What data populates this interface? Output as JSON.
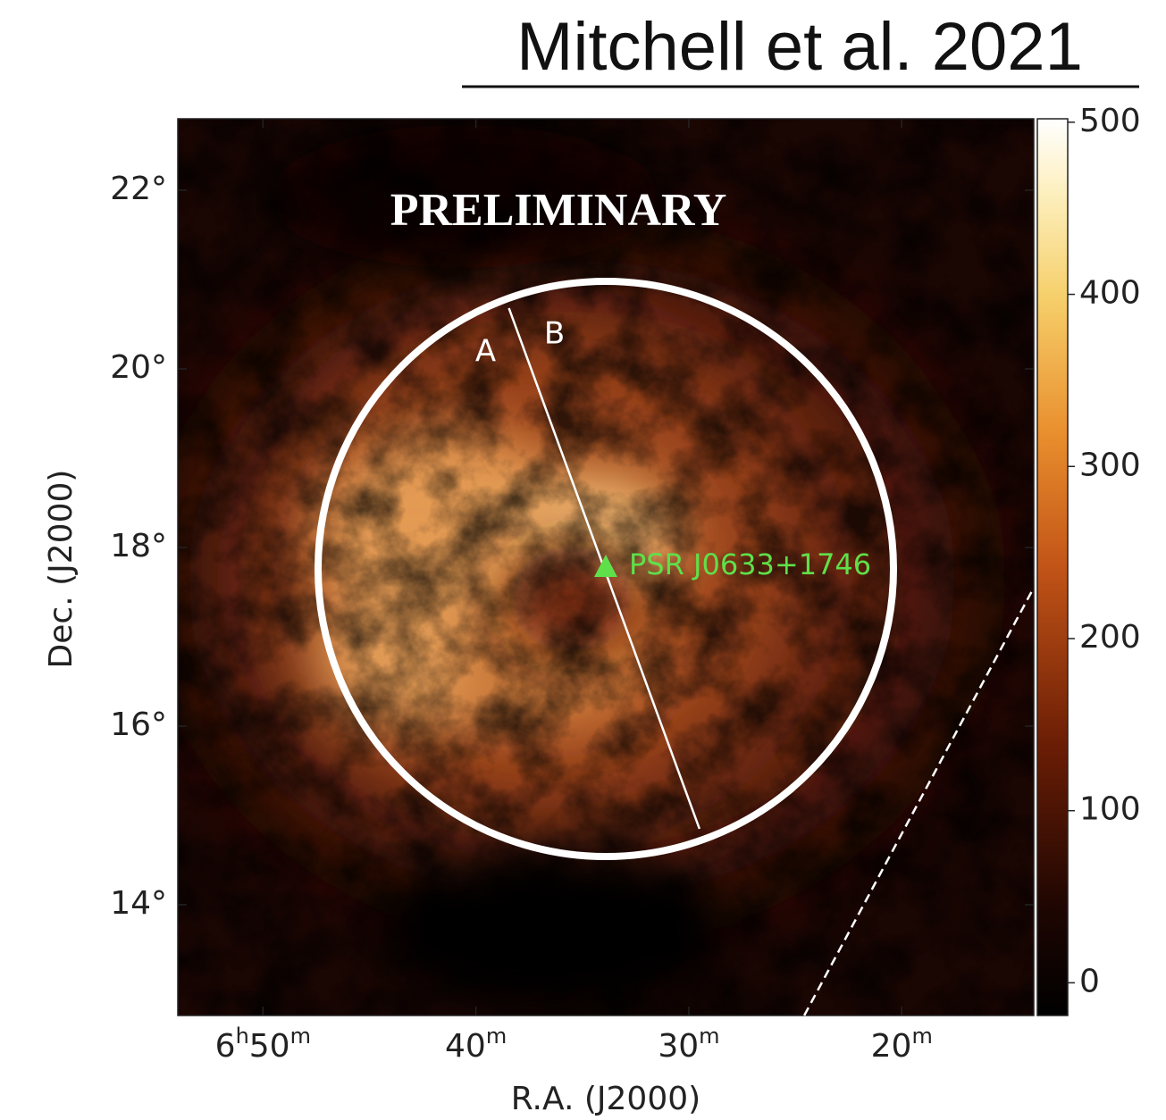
{
  "chart_data": {
    "type": "skymap",
    "title": "Mitchell et al. 2021",
    "watermark": "PRELIMINARY",
    "xlabel": "R.A. (J2000)",
    "ylabel": "Dec. (J2000)",
    "xlim": [
      54.0,
      13.8
    ],
    "ylim": [
      12.76,
      22.8
    ],
    "xticks": [
      {
        "value": 50,
        "label": "6h50m"
      },
      {
        "value": 40,
        "label": "40m"
      },
      {
        "value": 30,
        "label": "30m"
      },
      {
        "value": 20,
        "label": "20m"
      }
    ],
    "yticks": [
      {
        "value": 14,
        "label": "14°"
      },
      {
        "value": 16,
        "label": "16°"
      },
      {
        "value": 18,
        "label": "18°"
      },
      {
        "value": 20,
        "label": "20°"
      },
      {
        "value": 22,
        "label": "22°"
      }
    ],
    "clim": [
      -19,
      502
    ],
    "cticks": [
      0,
      100,
      200,
      300,
      400,
      500
    ],
    "source": {
      "name": "PSR J0633+1746",
      "ra": 33.9,
      "dec": 17.77,
      "color": "#5fe04a"
    },
    "region": {
      "ra": 33.9,
      "dec": 17.76,
      "radius": 3.22,
      "color": "#ffffff"
    },
    "divider": {
      "ra": [
        38.45,
        29.5
      ],
      "dec": [
        20.68,
        14.85
      ],
      "labels": [
        "A",
        "B"
      ]
    },
    "boundary": {
      "ra": [
        24.58,
        13.8
      ],
      "dec": [
        12.76,
        17.55
      ]
    }
  }
}
